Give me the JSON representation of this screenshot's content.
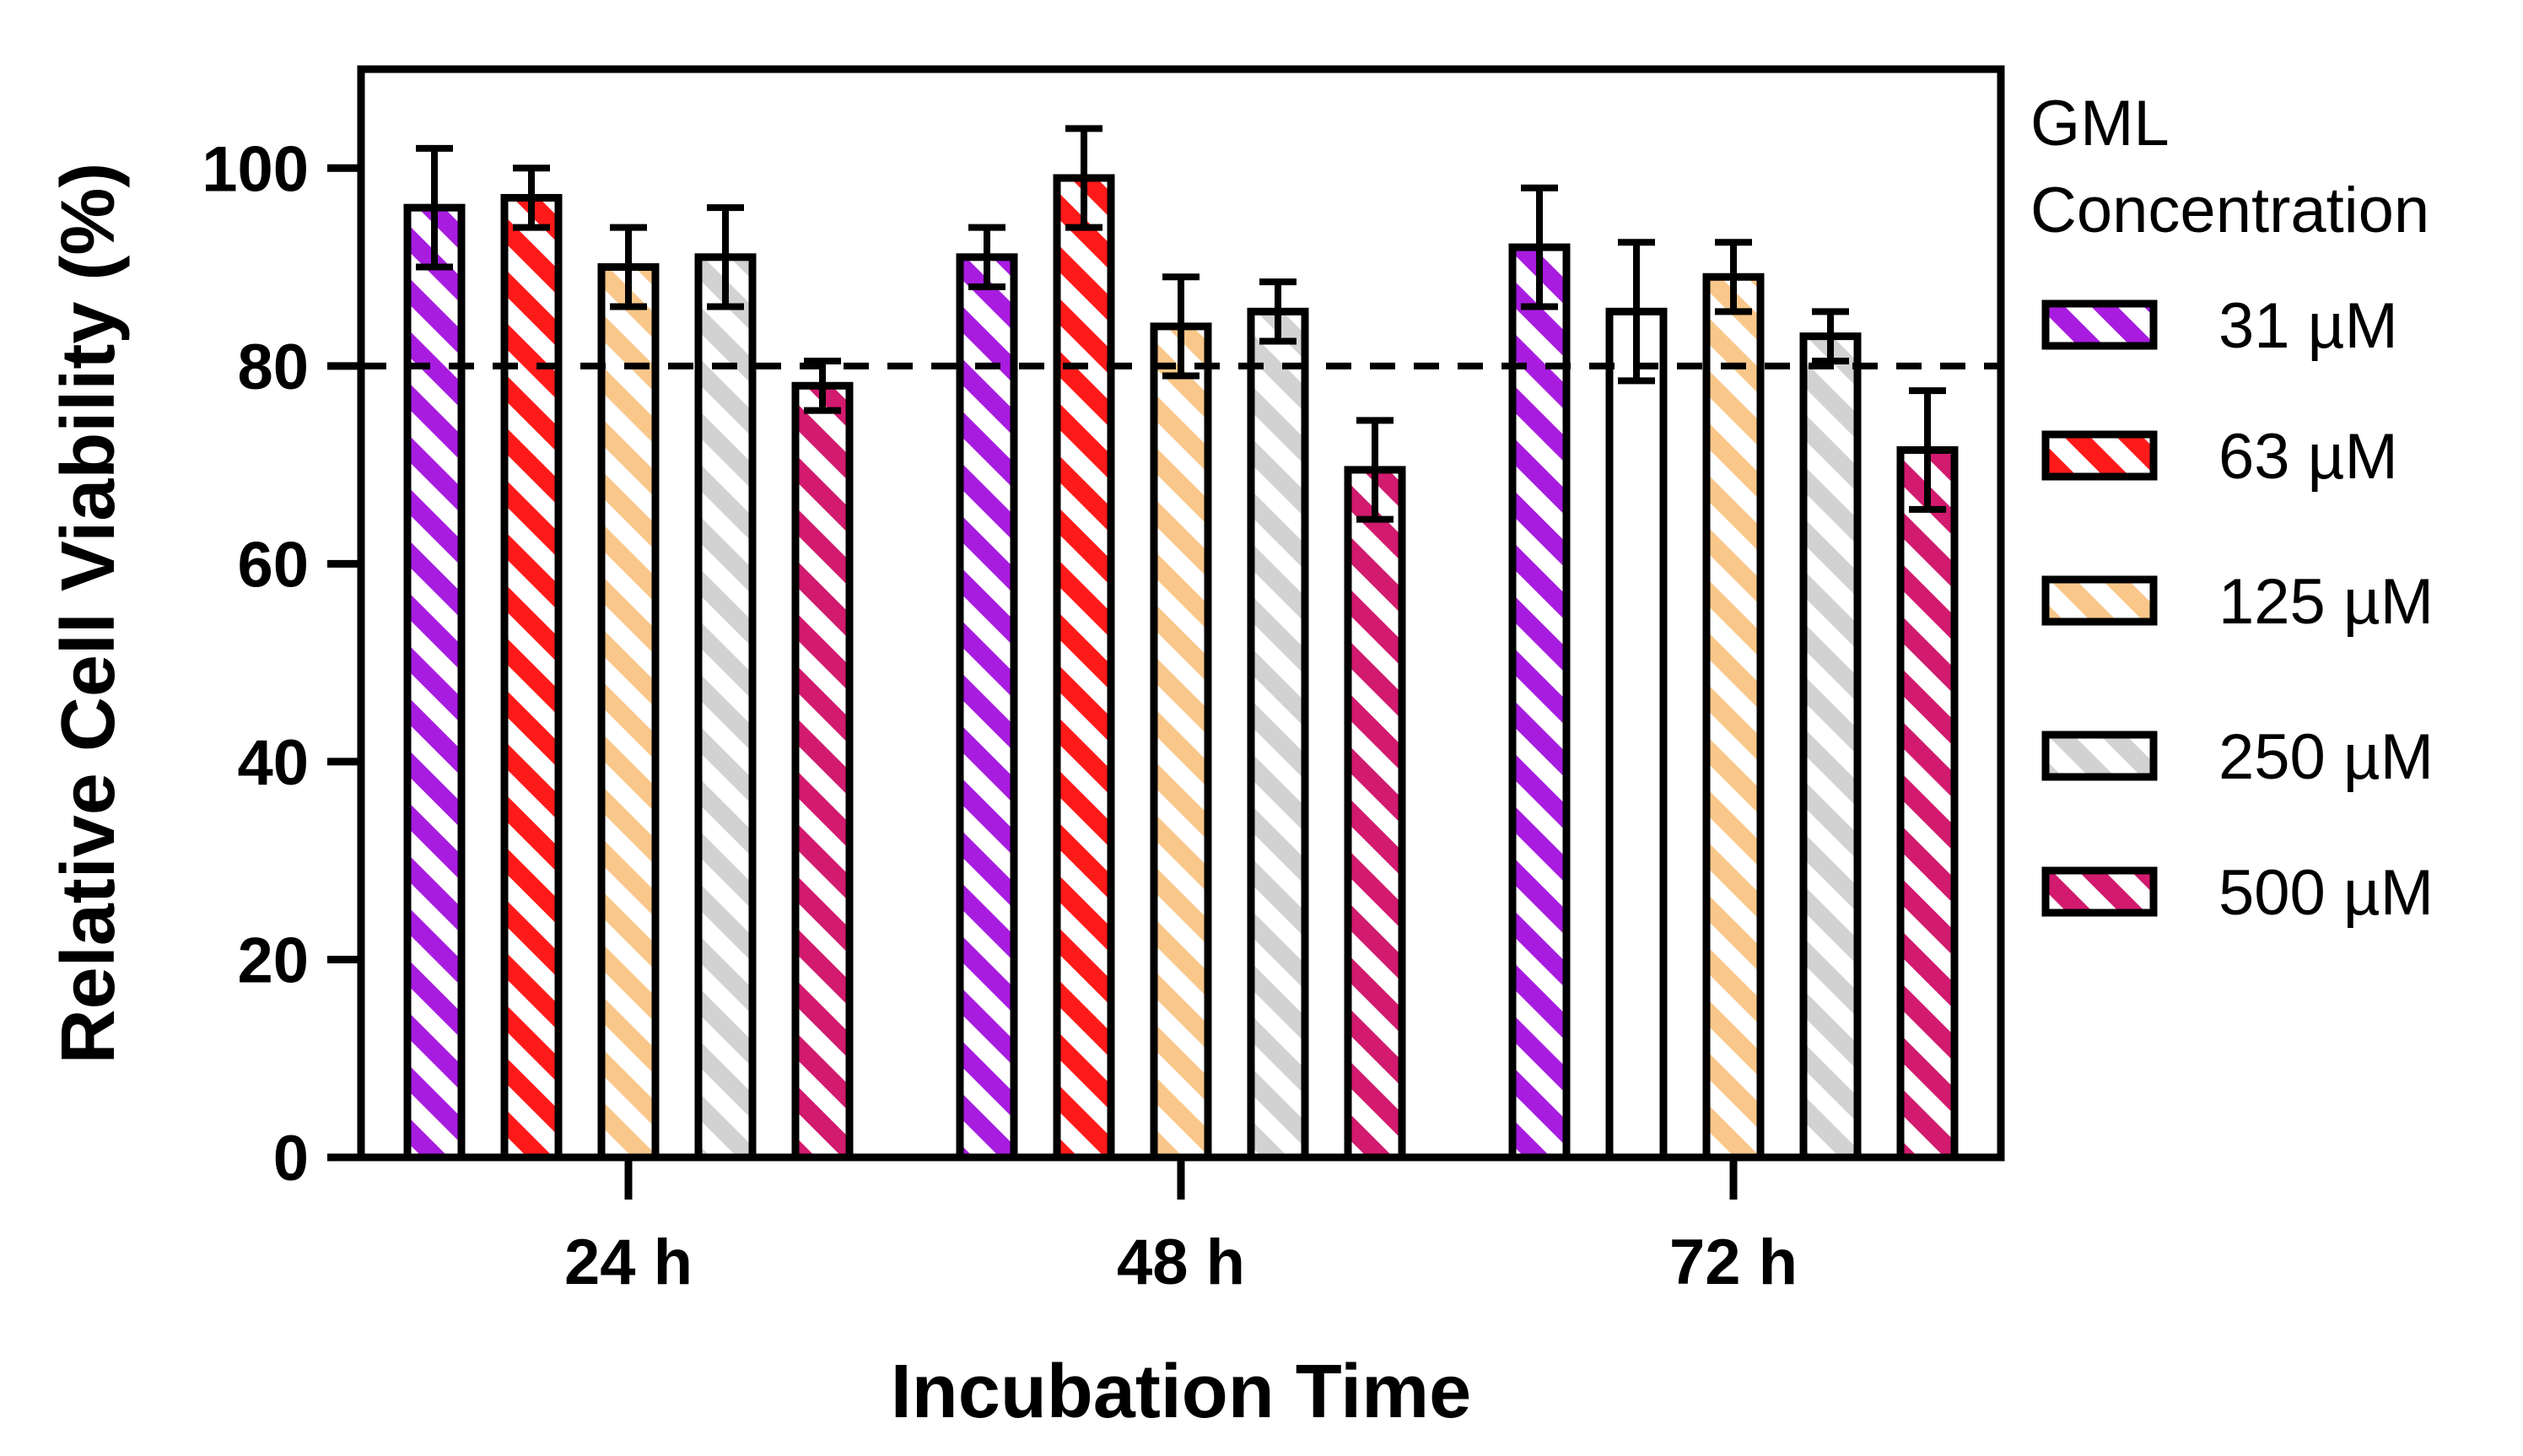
{
  "chart_data": {
    "type": "bar",
    "title": "",
    "xlabel": "Incubation Time",
    "ylabel": "Relative Cell  Viability  (%)",
    "ylim": [
      0,
      110
    ],
    "yticks": [
      "0",
      "20",
      "40",
      "60",
      "80",
      "100"
    ],
    "categories": [
      "24 h",
      "48 h",
      "72 h"
    ],
    "reference_line": {
      "y": 80,
      "style": "dashed"
    },
    "legend": {
      "title_line1": "GML",
      "title_line2": "Concentration",
      "position": "right"
    },
    "series": [
      {
        "name": "31 µM",
        "label_num": "31",
        "label_unit": "µM",
        "color": "#A81CE0",
        "pattern": "hatched",
        "values": [
          96,
          91,
          92
        ],
        "errors": [
          6,
          3,
          6
        ]
      },
      {
        "name": "63 µM",
        "label_num": "63",
        "label_unit": "µM",
        "color": "#FF1A1A",
        "pattern": "hatched",
        "values": [
          97,
          99,
          85.5
        ],
        "errors": [
          3,
          5,
          7
        ]
      },
      {
        "name": "125 µM",
        "label_num": "125",
        "label_unit": "µM",
        "color": "#F9C78A",
        "pattern": "hatched",
        "values": [
          90,
          84,
          89
        ],
        "errors": [
          4,
          5,
          3.5
        ]
      },
      {
        "name": "250 µM",
        "label_num": "250",
        "label_unit": "µM",
        "color": "#D2D2D2",
        "pattern": "hatched",
        "values": [
          91,
          85.5,
          83
        ],
        "errors": [
          5,
          3,
          2.5
        ]
      },
      {
        "name": "500 µM",
        "label_num": "500",
        "label_unit": "µM",
        "color": "#D21A6E",
        "pattern": "hatched",
        "values": [
          78,
          69.5,
          71.5
        ],
        "errors": [
          2.5,
          5,
          6
        ]
      }
    ],
    "bar_fill_overrides": [
      {
        "series": 0,
        "category": 1,
        "color": "#A81CE0"
      },
      {
        "series": 1,
        "category": 2,
        "color": "#FFFFFF"
      }
    ]
  }
}
